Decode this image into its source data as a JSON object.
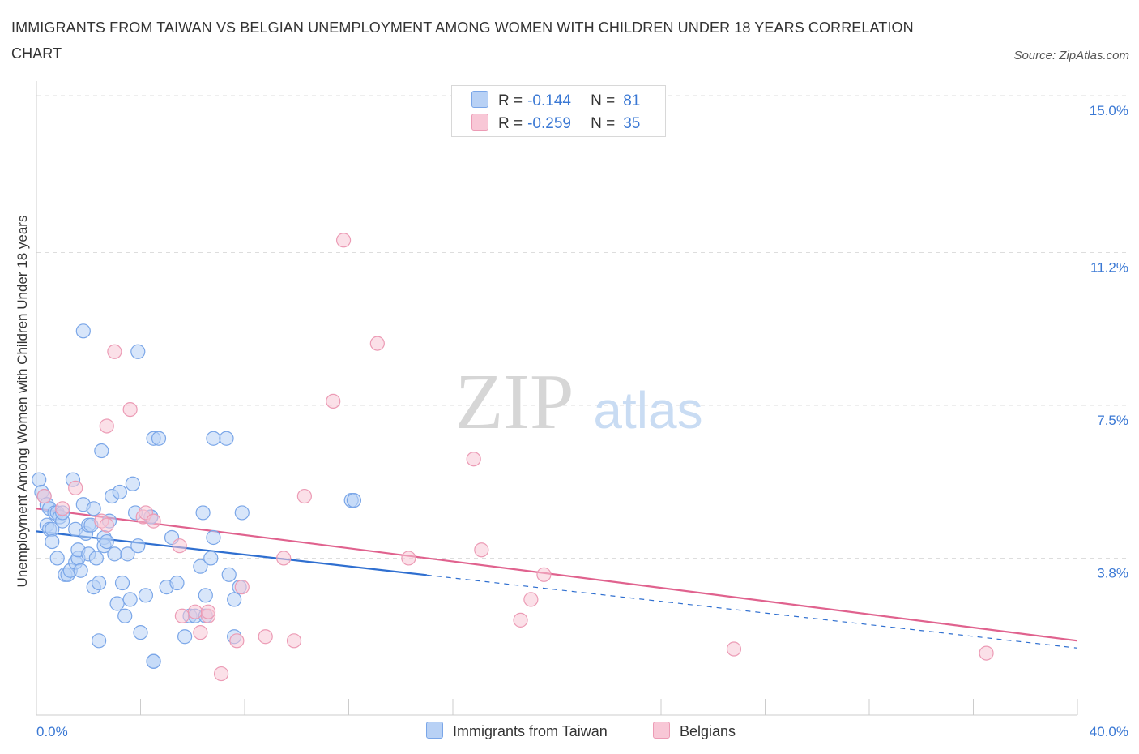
{
  "header": {
    "title": "IMMIGRANTS FROM TAIWAN VS BELGIAN UNEMPLOYMENT AMONG WOMEN WITH CHILDREN UNDER 18 YEARS CORRELATION CHART",
    "source": "Source: ZipAtlas.com"
  },
  "watermark": {
    "zip": "ZIP",
    "atlas": "atlas"
  },
  "colors": {
    "blue_fill": "#b8d1f5",
    "blue_stroke": "#7aa6e8",
    "blue_line": "#2f6fd0",
    "pink_fill": "#f8c7d6",
    "pink_stroke": "#ec9bb5",
    "pink_line": "#e0628e",
    "tick_label": "#3a78d4",
    "grid": "#dddddd"
  },
  "legend": {
    "rows": [
      {
        "r_label": "R =",
        "r_value": "-0.144",
        "n_label": "N =",
        "n_value": "81",
        "color": "#b8d1f5",
        "border": "#7aa6e8"
      },
      {
        "r_label": "R =",
        "r_value": "-0.259",
        "n_label": "N =",
        "n_value": "35",
        "color": "#f8c7d6",
        "border": "#ec9bb5"
      }
    ],
    "bottom": [
      "Immigrants from Taiwan",
      "Belgians"
    ]
  },
  "chart_data": {
    "type": "scatter",
    "ylabel": "Unemployment Among Women with Children Under 18 years",
    "xlim": [
      0,
      40
    ],
    "ylim": [
      0,
      15
    ],
    "x_tick_labels": [
      {
        "value": 0,
        "label": "0.0%"
      },
      {
        "value": 40,
        "label": "40.0%"
      }
    ],
    "y_tick_labels": [
      {
        "value": 3.8,
        "label": "3.8%"
      },
      {
        "value": 7.5,
        "label": "7.5%"
      },
      {
        "value": 11.2,
        "label": "11.2%"
      },
      {
        "value": 15.0,
        "label": "15.0%"
      }
    ],
    "grid": true,
    "series": [
      {
        "name": "Immigrants from Taiwan",
        "color": "#b8d1f5",
        "points": [
          [
            0.1,
            5.7
          ],
          [
            0.2,
            5.4
          ],
          [
            0.3,
            5.3
          ],
          [
            0.4,
            5.1
          ],
          [
            0.4,
            4.6
          ],
          [
            0.5,
            5.0
          ],
          [
            0.5,
            4.5
          ],
          [
            0.6,
            4.5
          ],
          [
            0.6,
            4.2
          ],
          [
            0.7,
            4.9
          ],
          [
            0.8,
            3.8
          ],
          [
            0.8,
            4.9
          ],
          [
            0.9,
            4.8
          ],
          [
            1.0,
            4.7
          ],
          [
            1.0,
            4.9
          ],
          [
            1.1,
            3.4
          ],
          [
            1.2,
            3.4
          ],
          [
            1.3,
            3.5
          ],
          [
            1.4,
            5.7
          ],
          [
            1.5,
            4.5
          ],
          [
            1.5,
            3.7
          ],
          [
            1.6,
            3.8
          ],
          [
            1.6,
            4.0
          ],
          [
            1.7,
            3.5
          ],
          [
            1.8,
            9.3
          ],
          [
            1.8,
            5.1
          ],
          [
            1.9,
            4.4
          ],
          [
            2.0,
            3.9
          ],
          [
            2.0,
            4.6
          ],
          [
            2.1,
            4.6
          ],
          [
            2.2,
            3.1
          ],
          [
            2.2,
            5.0
          ],
          [
            2.3,
            3.8
          ],
          [
            2.4,
            1.8
          ],
          [
            2.4,
            3.2
          ],
          [
            2.5,
            6.4
          ],
          [
            2.6,
            4.3
          ],
          [
            2.6,
            4.1
          ],
          [
            2.7,
            4.2
          ],
          [
            2.8,
            4.7
          ],
          [
            2.9,
            5.3
          ],
          [
            3.0,
            3.9
          ],
          [
            3.1,
            2.7
          ],
          [
            3.2,
            5.4
          ],
          [
            3.3,
            3.2
          ],
          [
            3.4,
            2.4
          ],
          [
            3.5,
            3.9
          ],
          [
            3.6,
            2.8
          ],
          [
            3.7,
            5.6
          ],
          [
            3.8,
            4.9
          ],
          [
            3.9,
            4.1
          ],
          [
            3.9,
            8.8
          ],
          [
            4.0,
            2.0
          ],
          [
            4.2,
            2.9
          ],
          [
            4.4,
            4.8
          ],
          [
            4.4,
            4.8
          ],
          [
            4.5,
            1.3
          ],
          [
            4.5,
            1.3
          ],
          [
            4.5,
            6.7
          ],
          [
            4.7,
            6.7
          ],
          [
            5.0,
            3.1
          ],
          [
            5.2,
            4.3
          ],
          [
            5.4,
            3.2
          ],
          [
            5.7,
            1.9
          ],
          [
            5.9,
            2.4
          ],
          [
            6.1,
            2.4
          ],
          [
            6.3,
            3.6
          ],
          [
            6.4,
            4.9
          ],
          [
            6.5,
            2.9
          ],
          [
            6.5,
            2.4
          ],
          [
            6.7,
            3.8
          ],
          [
            6.8,
            4.3
          ],
          [
            6.8,
            6.7
          ],
          [
            7.3,
            6.7
          ],
          [
            7.4,
            3.4
          ],
          [
            7.6,
            1.9
          ],
          [
            7.6,
            2.8
          ],
          [
            7.8,
            3.1
          ],
          [
            7.9,
            4.9
          ],
          [
            12.1,
            5.2
          ],
          [
            12.2,
            5.2
          ]
        ],
        "trend": {
          "x": [
            0,
            15
          ],
          "y": [
            4.45,
            3.39
          ]
        }
      },
      {
        "name": "Belgians",
        "color": "#f8c7d6",
        "points": [
          [
            0.3,
            5.3
          ],
          [
            1.0,
            5.0
          ],
          [
            1.5,
            5.5
          ],
          [
            2.5,
            4.7
          ],
          [
            2.7,
            4.6
          ],
          [
            2.7,
            7.0
          ],
          [
            3.0,
            8.8
          ],
          [
            3.6,
            7.4
          ],
          [
            4.1,
            4.8
          ],
          [
            4.2,
            4.9
          ],
          [
            4.5,
            4.7
          ],
          [
            5.5,
            4.1
          ],
          [
            5.6,
            2.4
          ],
          [
            6.1,
            2.5
          ],
          [
            6.3,
            2.0
          ],
          [
            6.6,
            2.4
          ],
          [
            6.6,
            2.5
          ],
          [
            7.1,
            1.0
          ],
          [
            7.7,
            1.8
          ],
          [
            7.9,
            3.1
          ],
          [
            8.8,
            1.9
          ],
          [
            9.5,
            3.8
          ],
          [
            9.9,
            1.8
          ],
          [
            10.3,
            5.3
          ],
          [
            11.4,
            7.6
          ],
          [
            11.8,
            11.5
          ],
          [
            13.1,
            9.0
          ],
          [
            14.3,
            3.8
          ],
          [
            16.8,
            6.2
          ],
          [
            17.1,
            4.0
          ],
          [
            18.6,
            2.3
          ],
          [
            19.0,
            2.8
          ],
          [
            19.5,
            3.4
          ],
          [
            26.8,
            1.6
          ],
          [
            36.5,
            1.5
          ]
        ],
        "trend": {
          "x": [
            0,
            40
          ],
          "y": [
            5.0,
            1.8
          ]
        }
      }
    ]
  }
}
